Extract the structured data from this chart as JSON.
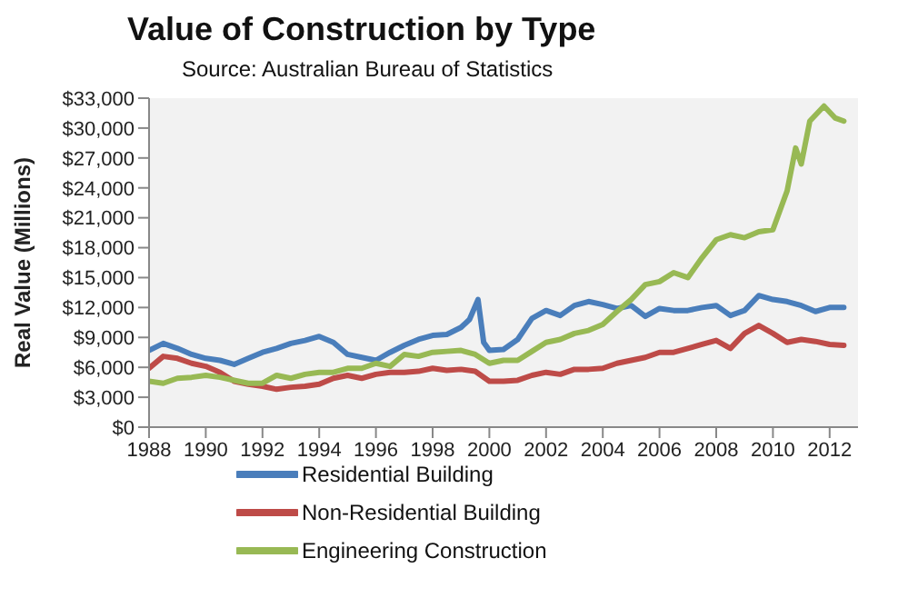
{
  "chart_data": {
    "type": "line",
    "title": "Value of Construction by Type",
    "ylabel": "Real Value (Millions)",
    "annotations": [
      "Source: Australian Bureau of Statistics"
    ],
    "xlim": [
      1988,
      2013
    ],
    "xticks": [
      1988,
      1990,
      1992,
      1994,
      1996,
      1998,
      2000,
      2002,
      2004,
      2006,
      2008,
      2010,
      2012
    ],
    "ylim": [
      0,
      33000
    ],
    "yticks": [
      {
        "value": 0,
        "label": "$0"
      },
      {
        "value": 3000,
        "label": "$3,000"
      },
      {
        "value": 6000,
        "label": "$6,000"
      },
      {
        "value": 9000,
        "label": "$9,000"
      },
      {
        "value": 12000,
        "label": "$12,000"
      },
      {
        "value": 15000,
        "label": "$15,000"
      },
      {
        "value": 18000,
        "label": "$18,000"
      },
      {
        "value": 21000,
        "label": "$21,000"
      },
      {
        "value": 24000,
        "label": "$24,000"
      },
      {
        "value": 27000,
        "label": "$27,000"
      },
      {
        "value": 30000,
        "label": "$30,000"
      },
      {
        "value": 33000,
        "label": "$33,000"
      }
    ],
    "grid": false,
    "legend": "bottom",
    "marker": "none",
    "line_style": "solid",
    "series": [
      {
        "name": "Residential Building",
        "color": "#4a7ebb",
        "x": [
          1988,
          1988.5,
          1989,
          1989.5,
          1990,
          1990.5,
          1991,
          1991.5,
          1992,
          1992.5,
          1993,
          1993.5,
          1994,
          1994.5,
          1995,
          1995.5,
          1996,
          1996.5,
          1997,
          1997.5,
          1998,
          1998.5,
          1999,
          1999.3,
          1999.6,
          1999.8,
          2000,
          2000.5,
          2001,
          2001.5,
          2002,
          2002.5,
          2003,
          2003.5,
          2004,
          2004.5,
          2005,
          2005.5,
          2006,
          2006.5,
          2007,
          2007.5,
          2008,
          2008.5,
          2009,
          2009.5,
          2010,
          2010.5,
          2011,
          2011.5,
          2012,
          2012.5
        ],
        "values": [
          7700,
          8400,
          7900,
          7300,
          6900,
          6700,
          6300,
          6900,
          7500,
          7900,
          8400,
          8700,
          9100,
          8500,
          7300,
          7000,
          6700,
          7500,
          8200,
          8800,
          9200,
          9300,
          10000,
          10800,
          12800,
          8500,
          7700,
          7800,
          8800,
          10900,
          11700,
          11200,
          12200,
          12600,
          12300,
          11900,
          12200,
          11100,
          11900,
          11700,
          11700,
          12000,
          12200,
          11200,
          11700,
          13200,
          12800,
          12600,
          12200,
          11600,
          12000,
          12000
        ]
      },
      {
        "name": "Non-Residential Building",
        "color": "#be4b48",
        "x": [
          1988,
          1988.5,
          1989,
          1989.5,
          1990,
          1990.5,
          1991,
          1991.5,
          1992,
          1992.5,
          1993,
          1993.5,
          1994,
          1994.5,
          1995,
          1995.5,
          1996,
          1996.5,
          1997,
          1997.5,
          1998,
          1998.5,
          1999,
          1999.5,
          2000,
          2000.5,
          2001,
          2001.5,
          2002,
          2002.5,
          2003,
          2003.5,
          2004,
          2004.5,
          2005,
          2005.5,
          2006,
          2006.5,
          2007,
          2007.5,
          2008,
          2008.5,
          2009,
          2009.5,
          2010,
          2010.5,
          2011,
          2011.5,
          2012,
          2012.5
        ],
        "values": [
          5900,
          7100,
          6900,
          6400,
          6100,
          5500,
          4600,
          4300,
          4100,
          3800,
          4000,
          4100,
          4300,
          4900,
          5200,
          4900,
          5300,
          5500,
          5500,
          5600,
          5900,
          5700,
          5800,
          5600,
          4600,
          4600,
          4700,
          5200,
          5500,
          5300,
          5800,
          5800,
          5900,
          6400,
          6700,
          7000,
          7500,
          7500,
          7900,
          8300,
          8700,
          7900,
          9400,
          10200,
          9400,
          8500,
          8800,
          8600,
          8300,
          8200
        ]
      },
      {
        "name": "Engineering Construction",
        "color": "#98b954",
        "x": [
          1988,
          1988.5,
          1989,
          1989.5,
          1990,
          1990.5,
          1991,
          1991.5,
          1992,
          1992.5,
          1993,
          1993.5,
          1994,
          1994.5,
          1995,
          1995.5,
          1996,
          1996.5,
          1997,
          1997.5,
          1998,
          1998.5,
          1999,
          1999.5,
          2000,
          2000.5,
          2001,
          2001.5,
          2002,
          2002.5,
          2003,
          2003.5,
          2004,
          2004.5,
          2005,
          2005.5,
          2006,
          2006.5,
          2007,
          2007.5,
          2008,
          2008.5,
          2009,
          2009.5,
          2010,
          2010.5,
          2010.8,
          2011,
          2011.3,
          2011.8,
          2012.2,
          2012.5
        ],
        "values": [
          4600,
          4400,
          4900,
          5000,
          5200,
          5000,
          4700,
          4400,
          4400,
          5200,
          4900,
          5300,
          5500,
          5500,
          5900,
          5900,
          6400,
          6100,
          7300,
          7100,
          7500,
          7600,
          7700,
          7300,
          6400,
          6700,
          6700,
          7600,
          8500,
          8800,
          9400,
          9700,
          10300,
          11600,
          12800,
          14300,
          14600,
          15500,
          15000,
          17000,
          18800,
          19300,
          19000,
          19600,
          19800,
          23700,
          28000,
          26400,
          30700,
          32200,
          31000,
          30700
        ]
      }
    ]
  }
}
